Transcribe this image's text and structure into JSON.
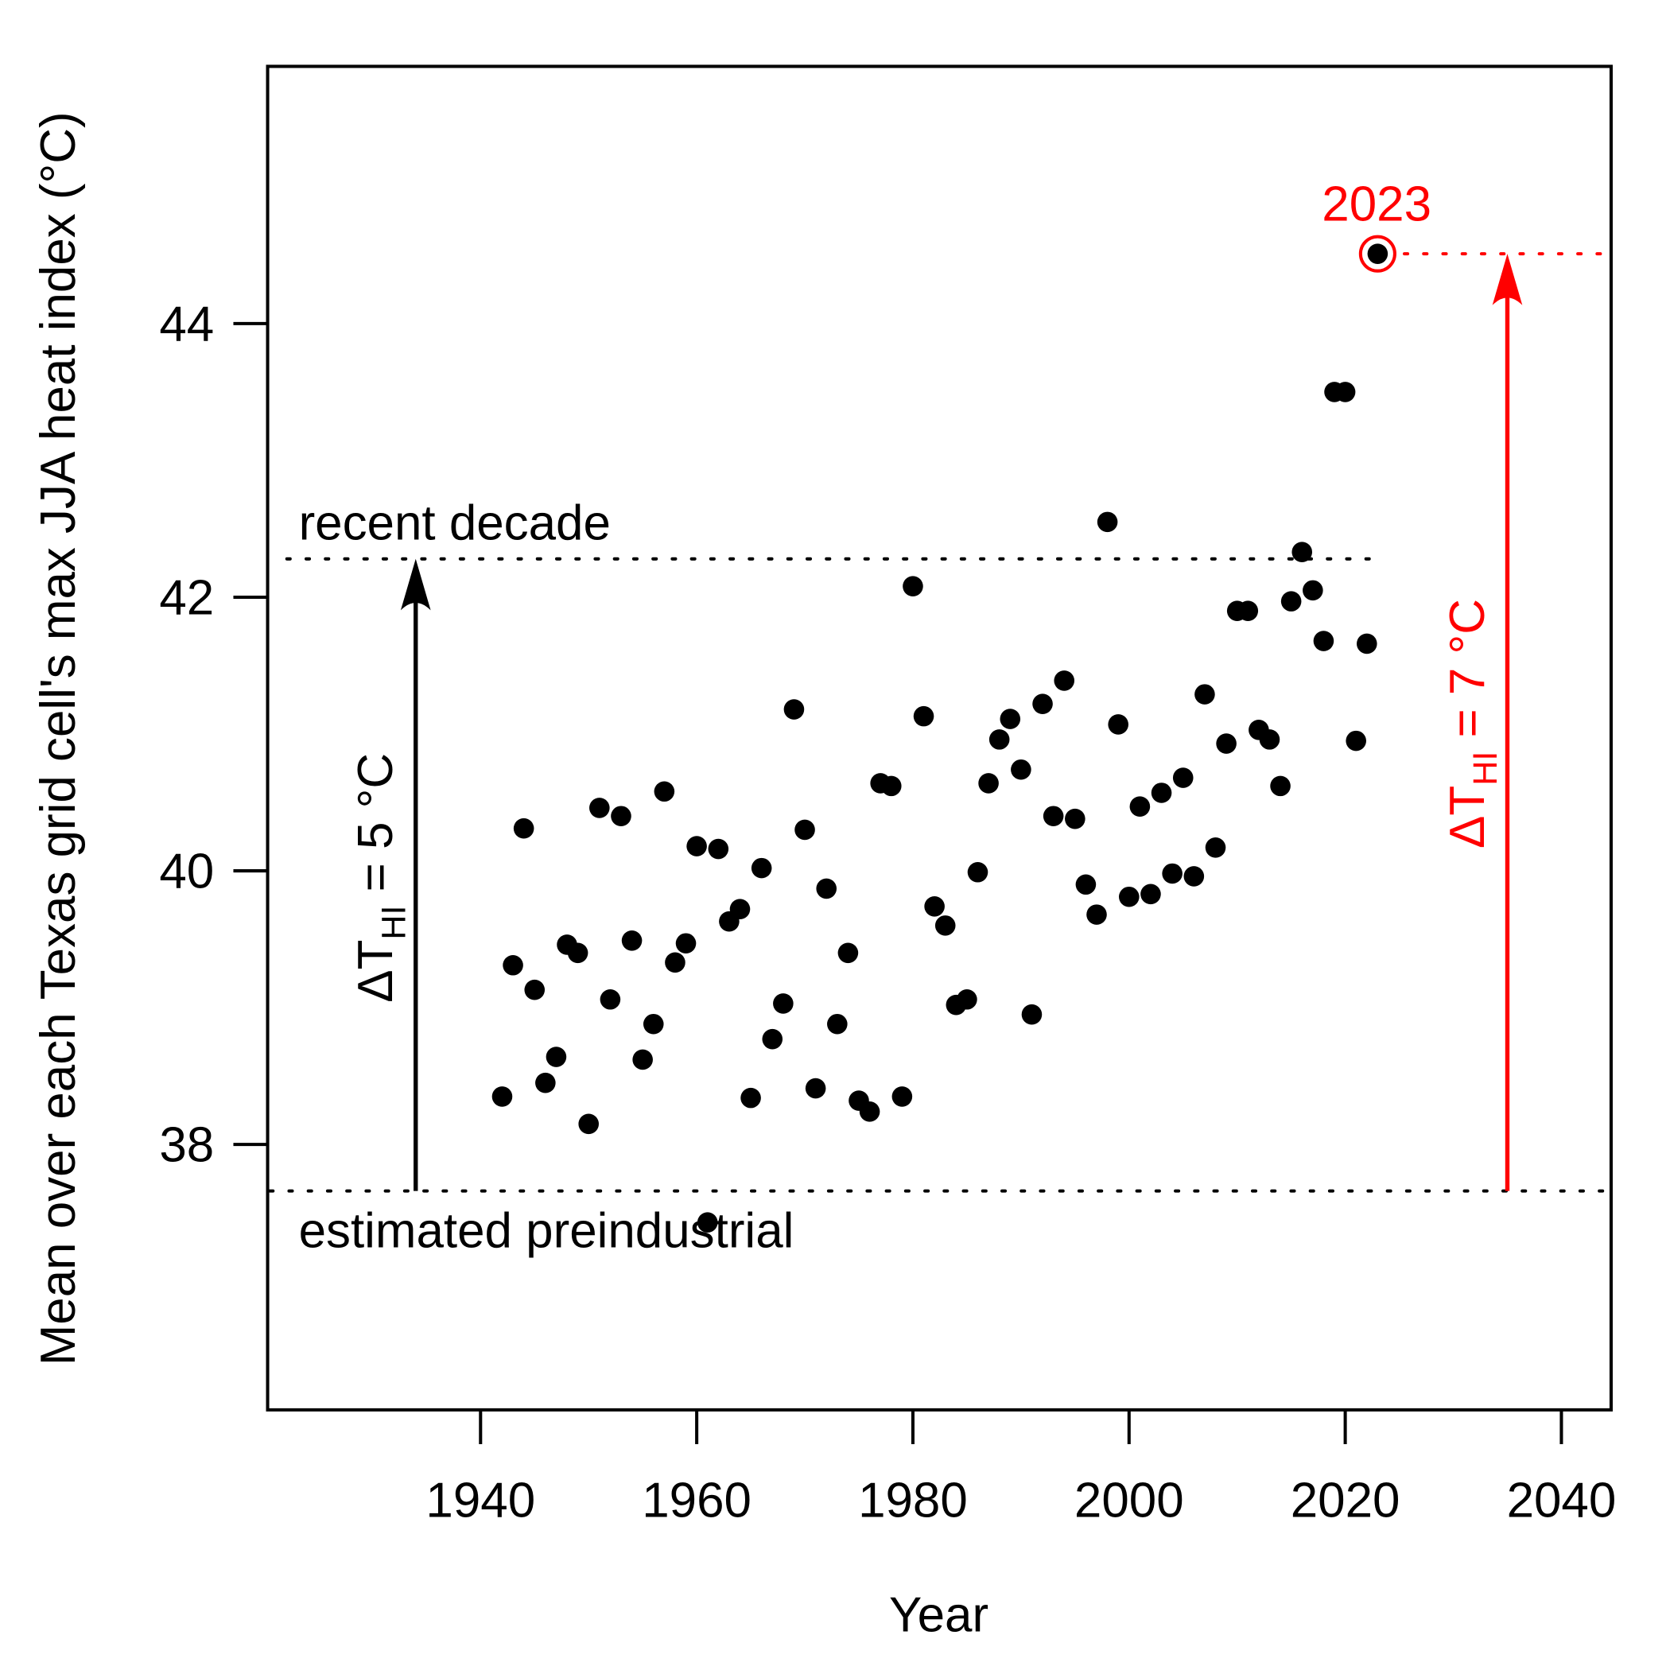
{
  "chart_data": {
    "type": "scatter",
    "title": "",
    "xlabel": "Year",
    "ylabel": "Mean over each Texas grid cell's max JJA heat index  (°C)",
    "xlim": [
      1920.3,
      2044.6
    ],
    "ylim": [
      36.06,
      45.88
    ],
    "xticks": [
      "1940",
      "1960",
      "1980",
      "2000",
      "2020",
      "2040"
    ],
    "yticks": [
      "38",
      "40",
      "42",
      "44"
    ],
    "grid": false,
    "x": [
      1942,
      1943,
      1944,
      1945,
      1946,
      1947,
      1948,
      1949,
      1950,
      1951,
      1952,
      1953,
      1954,
      1955,
      1956,
      1957,
      1958,
      1959,
      1960,
      1961,
      1962,
      1963,
      1964,
      1965,
      1966,
      1967,
      1968,
      1969,
      1970,
      1971,
      1972,
      1973,
      1974,
      1975,
      1976,
      1977,
      1978,
      1979,
      1980,
      1981,
      1982,
      1983,
      1984,
      1985,
      1986,
      1987,
      1988,
      1989,
      1990,
      1991,
      1992,
      1993,
      1994,
      1995,
      1996,
      1997,
      1998,
      1999,
      2000,
      2001,
      2002,
      2003,
      2004,
      2005,
      2006,
      2007,
      2008,
      2009,
      2010,
      2011,
      2012,
      2013,
      2014,
      2015,
      2016,
      2017,
      2018,
      2019,
      2020,
      2021,
      2022,
      2023
    ],
    "y": [
      38.35,
      39.31,
      40.31,
      39.13,
      38.45,
      38.64,
      39.46,
      39.4,
      38.15,
      40.46,
      39.06,
      40.4,
      39.49,
      38.62,
      38.88,
      40.58,
      39.33,
      39.47,
      40.18,
      37.43,
      40.16,
      39.63,
      39.72,
      38.34,
      40.02,
      38.77,
      39.03,
      41.18,
      40.3,
      38.41,
      39.87,
      38.88,
      39.4,
      38.32,
      38.24,
      40.64,
      40.62,
      38.35,
      42.08,
      41.13,
      39.74,
      39.6,
      39.02,
      39.06,
      39.99,
      40.64,
      40.96,
      41.11,
      40.74,
      38.95,
      41.22,
      40.4,
      41.39,
      40.38,
      39.9,
      39.68,
      42.55,
      41.07,
      39.81,
      40.47,
      39.83,
      40.57,
      39.98,
      40.68,
      39.96,
      41.29,
      40.17,
      40.93,
      41.9,
      41.9,
      41.03,
      40.96,
      40.62,
      41.97,
      42.33,
      42.05,
      41.68,
      43.5,
      43.5,
      40.95,
      41.66,
      44.51
    ],
    "reference_lines": {
      "recent_decade": {
        "label": "recent decade",
        "value": 42.28
      },
      "preindustrial": {
        "label": "estimated preindustrial",
        "value": 37.66
      }
    },
    "highlight": {
      "label": "2023",
      "year": 2023,
      "value": 44.51,
      "color": "#ff0000"
    },
    "arrows": [
      {
        "year": 1934,
        "from": 37.66,
        "to": 42.28,
        "color": "#000000",
        "prefix": "ΔT",
        "sub": "HI",
        "suffix": " = 5 °C"
      },
      {
        "year": 2035,
        "from": 37.66,
        "to": 44.51,
        "color": "#ff0000",
        "prefix": "ΔT",
        "sub": "HI",
        "suffix": " = 7 °C"
      }
    ]
  }
}
